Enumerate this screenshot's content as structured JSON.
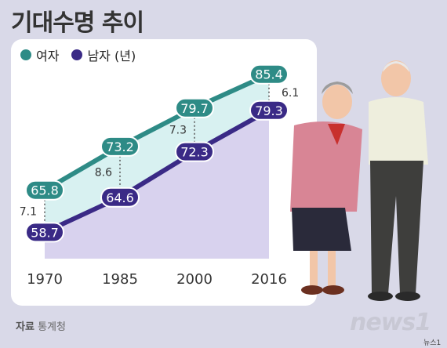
{
  "title": "기대수명 추이",
  "legend": {
    "women": "여자",
    "men": "남자 (년)"
  },
  "source": {
    "label": "자료",
    "value": "통계청"
  },
  "brand": "news1",
  "credit": "뉴스1",
  "colors": {
    "women": "#2e8b86",
    "men": "#3a2a86",
    "women_fill": "#d8f1f1",
    "men_fill": "#d8d2ee",
    "background": "#d9d9e8"
  },
  "chart_data": {
    "type": "line",
    "title": "기대수명 추이",
    "categories": [
      "1970",
      "1985",
      "2000",
      "2016"
    ],
    "series": [
      {
        "name": "여자",
        "values": [
          65.8,
          73.2,
          79.7,
          85.4
        ]
      },
      {
        "name": "남자",
        "values": [
          58.7,
          64.6,
          72.3,
          79.3
        ]
      }
    ],
    "gaps": [
      "7.1",
      "8.6",
      "7.3",
      "6.1"
    ],
    "ylim": [
      55,
      90
    ],
    "grid": false,
    "legend_position": "top-left"
  }
}
